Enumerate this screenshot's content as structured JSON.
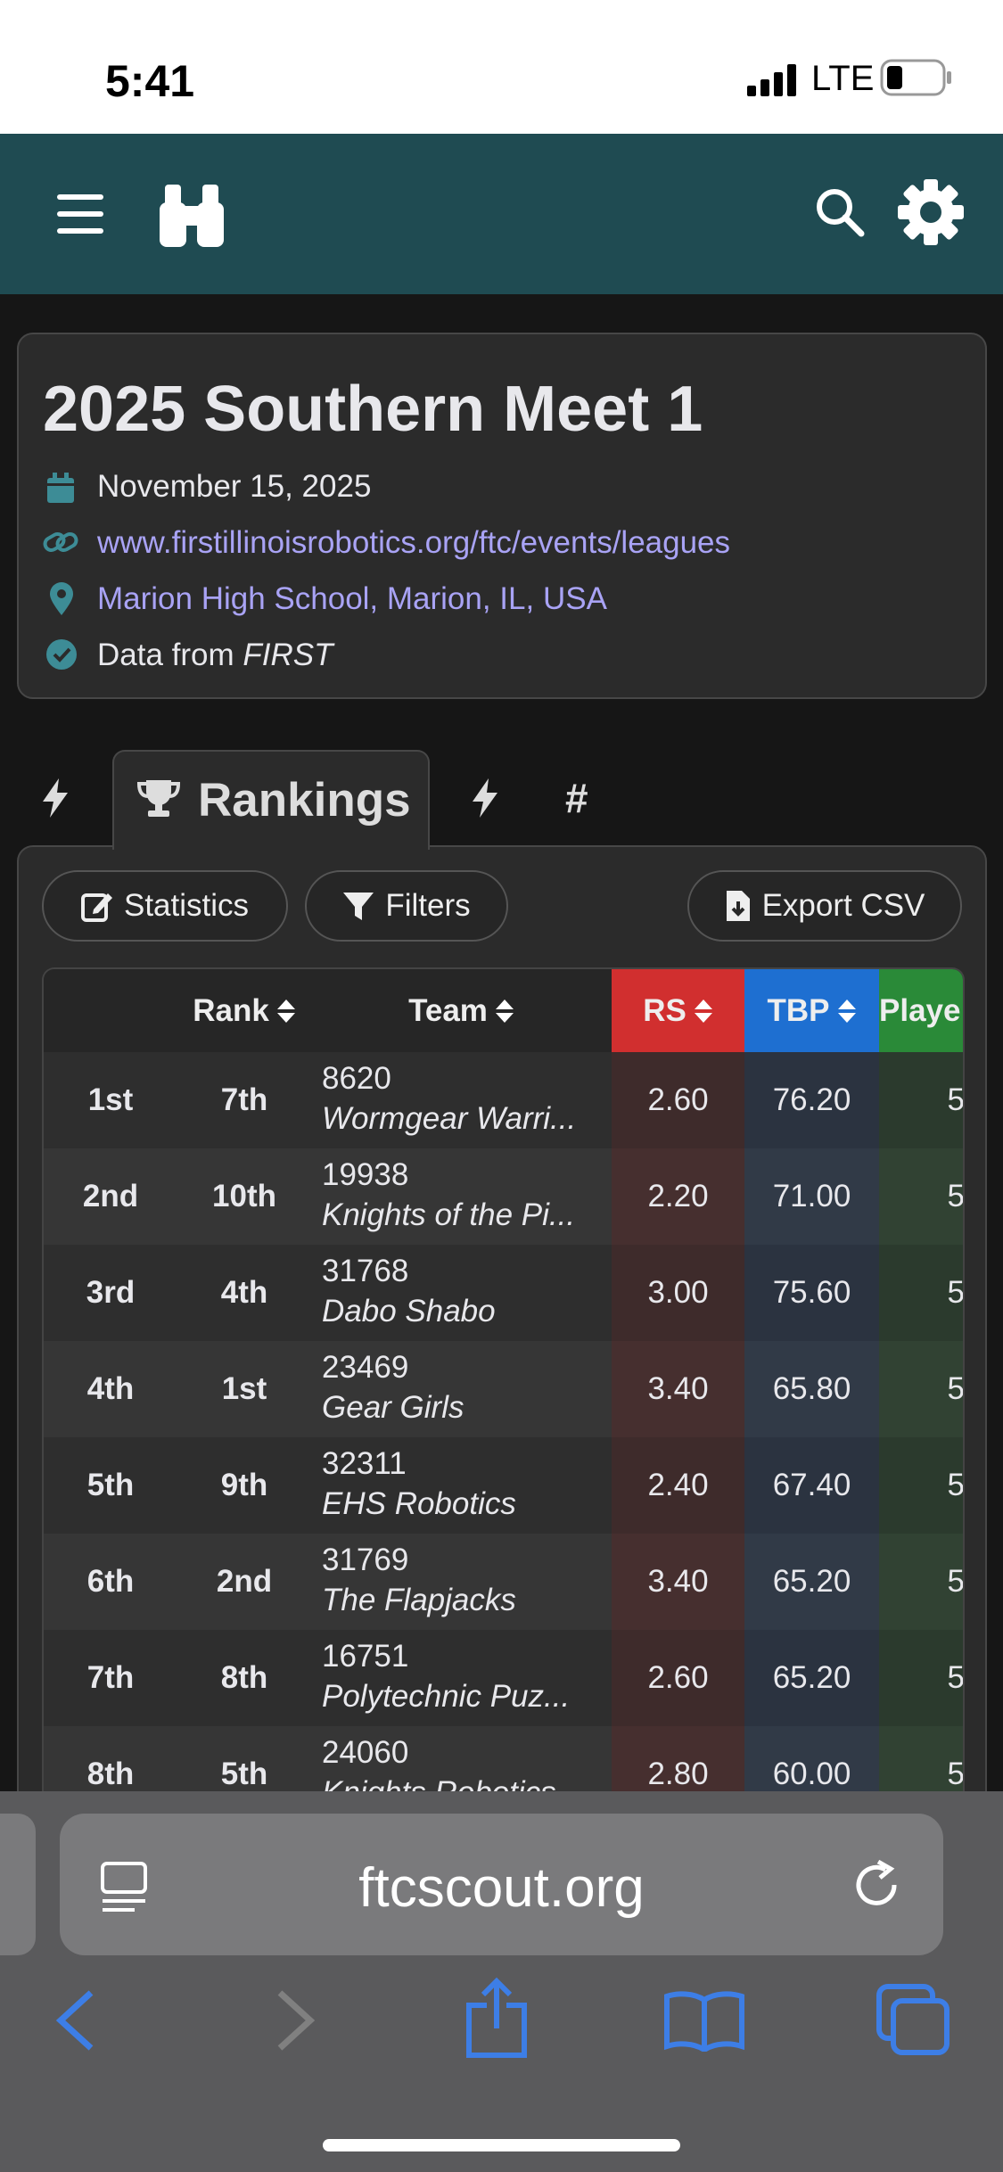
{
  "status": {
    "time": "5:41",
    "network": "LTE"
  },
  "event": {
    "title": "2025 Southern Meet 1",
    "date": "November 15, 2025",
    "website": "www.firstillinoisrobotics.org/ftc/events/leagues",
    "location": "Marion High School, Marion, IL, USA",
    "source_prefix": "Data from",
    "source": "FIRST"
  },
  "tabs": {
    "active": "Rankings",
    "other": "#"
  },
  "buttons": [
    "Statistics",
    "Filters",
    "Export CSV"
  ],
  "table": {
    "headers": [
      "Rank",
      "Team",
      "RS",
      "TBP",
      "Playe"
    ],
    "rows": [
      [
        "1st",
        "7th",
        "8620",
        "Wormgear Warri...",
        "2.60",
        "76.20",
        "5"
      ],
      [
        "2nd",
        "10th",
        "19938",
        "Knights of the Pi...",
        "2.20",
        "71.00",
        "5"
      ],
      [
        "3rd",
        "4th",
        "31768",
        "Dabo Shabo",
        "3.00",
        "75.60",
        "5"
      ],
      [
        "4th",
        "1st",
        "23469",
        "Gear Girls",
        "3.40",
        "65.80",
        "5"
      ],
      [
        "5th",
        "9th",
        "32311",
        "EHS Robotics",
        "2.40",
        "67.40",
        "5"
      ],
      [
        "6th",
        "2nd",
        "31769",
        "The Flapjacks",
        "3.40",
        "65.20",
        "5"
      ],
      [
        "7th",
        "8th",
        "16751",
        "Polytechnic Puz...",
        "2.60",
        "65.20",
        "5"
      ],
      [
        "8th",
        "5th",
        "24060",
        "Knights Robotics",
        "2.80",
        "60.00",
        "5"
      ]
    ]
  },
  "browser": {
    "url": "ftcscout.org"
  }
}
